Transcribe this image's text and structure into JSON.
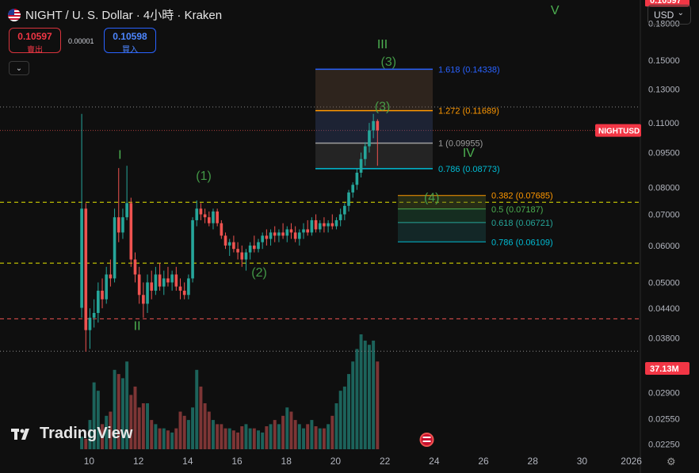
{
  "header": {
    "title": "NIGHT / U. S. Dollar · 4小時 · Kraken",
    "sell_price": "0.10597",
    "sell_label": "賣出",
    "spread": "0.00001",
    "buy_price": "0.10598",
    "buy_label": "買入",
    "currency": "USD",
    "brand": "TradingView"
  },
  "colors": {
    "up": "#26a69a",
    "down": "#ef5350",
    "wave": "#4caf50",
    "fib_top": "#2962ff",
    "fib_1272": "#ff9800",
    "fib_0786": "#00bcd4",
    "price_tag": "#f23645"
  },
  "chart_data": {
    "type": "candlestick",
    "title": "",
    "symbol": "NIGHTUSD",
    "price_scale": "log",
    "ylim": [
      0.0215,
      0.198
    ],
    "y_ticks": [
      "0.18000",
      "0.15000",
      "0.13000",
      "0.11000",
      "0.09500",
      "0.08000",
      "0.07000",
      "0.06000",
      "0.05000",
      "0.04400",
      "0.03800",
      "0.02900",
      "0.02550",
      "0.02250"
    ],
    "x_ticks": [
      "10",
      "12",
      "14",
      "16",
      "18",
      "20",
      "22",
      "24",
      "26",
      "28",
      "30",
      "2026"
    ],
    "x_range": [
      9.6,
      32.2
    ],
    "candles_per_day": 6,
    "first_candle_day": 9.7,
    "ohlc": [
      [
        0.0441,
        0.115,
        0.042,
        0.072
      ],
      [
        0.072,
        0.074,
        0.0355,
        0.0395
      ],
      [
        0.0395,
        0.044,
        0.036,
        0.042
      ],
      [
        0.042,
        0.046,
        0.04,
        0.043
      ],
      [
        0.043,
        0.05,
        0.041,
        0.048
      ],
      [
        0.048,
        0.051,
        0.044,
        0.046
      ],
      [
        0.046,
        0.054,
        0.045,
        0.052
      ],
      [
        0.052,
        0.056,
        0.049,
        0.051
      ],
      [
        0.051,
        0.072,
        0.05,
        0.069
      ],
      [
        0.069,
        0.088,
        0.061,
        0.064
      ],
      [
        0.064,
        0.072,
        0.062,
        0.069
      ],
      [
        0.069,
        0.089,
        0.068,
        0.074
      ],
      [
        0.074,
        0.076,
        0.054,
        0.056
      ],
      [
        0.056,
        0.058,
        0.05,
        0.052
      ],
      [
        0.052,
        0.054,
        0.045,
        0.047
      ],
      [
        0.047,
        0.05,
        0.042,
        0.045
      ],
      [
        0.045,
        0.052,
        0.043,
        0.05
      ],
      [
        0.05,
        0.053,
        0.046,
        0.048
      ],
      [
        0.048,
        0.054,
        0.047,
        0.052
      ],
      [
        0.052,
        0.055,
        0.048,
        0.049
      ],
      [
        0.049,
        0.053,
        0.047,
        0.051
      ],
      [
        0.051,
        0.054,
        0.049,
        0.05
      ],
      [
        0.05,
        0.053,
        0.048,
        0.052
      ],
      [
        0.052,
        0.054,
        0.048,
        0.049
      ],
      [
        0.049,
        0.051,
        0.046,
        0.048
      ],
      [
        0.048,
        0.05,
        0.046,
        0.047
      ],
      [
        0.047,
        0.052,
        0.046,
        0.051
      ],
      [
        0.051,
        0.069,
        0.05,
        0.068
      ],
      [
        0.068,
        0.075,
        0.066,
        0.072
      ],
      [
        0.072,
        0.074,
        0.068,
        0.07
      ],
      [
        0.07,
        0.072,
        0.067,
        0.069
      ],
      [
        0.069,
        0.071,
        0.066,
        0.067
      ],
      [
        0.067,
        0.072,
        0.065,
        0.071
      ],
      [
        0.071,
        0.072,
        0.066,
        0.067
      ],
      [
        0.067,
        0.068,
        0.062,
        0.063
      ],
      [
        0.063,
        0.064,
        0.059,
        0.06
      ],
      [
        0.06,
        0.062,
        0.057,
        0.061
      ],
      [
        0.061,
        0.063,
        0.058,
        0.059
      ],
      [
        0.059,
        0.061,
        0.056,
        0.058
      ],
      [
        0.058,
        0.06,
        0.054,
        0.056
      ],
      [
        0.056,
        0.059,
        0.053,
        0.058
      ],
      [
        0.058,
        0.061,
        0.056,
        0.06
      ],
      [
        0.06,
        0.063,
        0.058,
        0.059
      ],
      [
        0.059,
        0.062,
        0.058,
        0.061
      ],
      [
        0.061,
        0.064,
        0.059,
        0.063
      ],
      [
        0.063,
        0.065,
        0.06,
        0.062
      ],
      [
        0.062,
        0.065,
        0.06,
        0.064
      ],
      [
        0.064,
        0.066,
        0.061,
        0.063
      ],
      [
        0.063,
        0.065,
        0.061,
        0.064
      ],
      [
        0.064,
        0.067,
        0.062,
        0.063
      ],
      [
        0.063,
        0.066,
        0.061,
        0.065
      ],
      [
        0.065,
        0.067,
        0.062,
        0.064
      ],
      [
        0.064,
        0.066,
        0.061,
        0.062
      ],
      [
        0.062,
        0.065,
        0.06,
        0.064
      ],
      [
        0.064,
        0.067,
        0.062,
        0.065
      ],
      [
        0.065,
        0.068,
        0.063,
        0.064
      ],
      [
        0.064,
        0.069,
        0.063,
        0.068
      ],
      [
        0.068,
        0.07,
        0.064,
        0.065
      ],
      [
        0.065,
        0.068,
        0.064,
        0.067
      ],
      [
        0.067,
        0.069,
        0.064,
        0.066
      ],
      [
        0.066,
        0.068,
        0.064,
        0.067
      ],
      [
        0.067,
        0.07,
        0.065,
        0.066
      ],
      [
        0.066,
        0.069,
        0.065,
        0.068
      ],
      [
        0.068,
        0.072,
        0.066,
        0.07
      ],
      [
        0.07,
        0.074,
        0.068,
        0.073
      ],
      [
        0.073,
        0.079,
        0.071,
        0.078
      ],
      [
        0.078,
        0.082,
        0.076,
        0.081
      ],
      [
        0.081,
        0.088,
        0.079,
        0.086
      ],
      [
        0.086,
        0.095,
        0.084,
        0.092
      ],
      [
        0.092,
        0.1,
        0.089,
        0.098
      ],
      [
        0.098,
        0.11,
        0.095,
        0.106
      ],
      [
        0.106,
        0.115,
        0.102,
        0.111
      ],
      [
        0.111,
        0.112,
        0.089,
        0.106
      ]
    ],
    "volume_max": 55,
    "volume": [
      6,
      5,
      14,
      32,
      28,
      12,
      16,
      18,
      38,
      36,
      34,
      42,
      26,
      30,
      20,
      22,
      22,
      14,
      12,
      10,
      10,
      9,
      8,
      10,
      18,
      16,
      14,
      20,
      38,
      30,
      22,
      18,
      14,
      12,
      12,
      10,
      10,
      9,
      8,
      11,
      12,
      10,
      10,
      9,
      8,
      11,
      12,
      14,
      12,
      16,
      20,
      18,
      14,
      12,
      10,
      12,
      14,
      11,
      10,
      10,
      12,
      16,
      22,
      28,
      30,
      36,
      42,
      48,
      55,
      52,
      50,
      52,
      42
    ],
    "last_price": "0.10597",
    "last_volume": "37.13M",
    "horizontal_levels": [
      {
        "price": 0.07433,
        "label": "0.07433",
        "style": "dashed",
        "color": "#e6e600"
      },
      {
        "price": 0.055,
        "label": "0.05500",
        "style": "dashed",
        "color": "#e6e600"
      },
      {
        "price": 0.04177,
        "label": "0.04177",
        "style": "dashed",
        "color": "#ef5350"
      },
      {
        "price": 0.119,
        "label": "",
        "style": "dotted",
        "color": "#8a8a8a"
      },
      {
        "price": 0.0356,
        "label": "",
        "style": "dotted",
        "color": "#8a8a8a"
      }
    ],
    "fib_extension": [
      {
        "ratio": "1.618",
        "price": "0.14338",
        "label": "1.618 (0.14338)",
        "color": "#2962ff"
      },
      {
        "ratio": "1.272",
        "price": "0.11689",
        "label": "1.272 (0.11689)",
        "color": "#ff9800"
      },
      {
        "ratio": "1",
        "price": "0.09955",
        "label": "1 (0.09955)",
        "color": "#9e9e9e"
      },
      {
        "ratio": "0.786",
        "price": "0.08773",
        "label": "0.786 (0.08773)",
        "color": "#00bcd4"
      }
    ],
    "fib_retracement": [
      {
        "ratio": "0.382",
        "price": "0.07685",
        "label": "0.382 (0.07685)",
        "color": "#ff9800"
      },
      {
        "ratio": "0.5",
        "price": "0.07187",
        "label": "0.5 (0.07187)",
        "color": "#4caf50"
      },
      {
        "ratio": "0.618",
        "price": "0.06721",
        "label": "0.618 (0.06721)",
        "color": "#26a69a"
      },
      {
        "ratio": "0.786",
        "price": "0.06109",
        "label": "0.786 (0.06109)",
        "color": "#00bcd4"
      }
    ],
    "wave_labels": [
      {
        "text": "I",
        "day": 11.25,
        "price": 0.092
      },
      {
        "text": "II",
        "day": 11.95,
        "price": 0.0395
      },
      {
        "text": "(1)",
        "day": 14.65,
        "price": 0.083
      },
      {
        "text": "(2)",
        "day": 16.9,
        "price": 0.0515
      },
      {
        "text": "III",
        "day": 21.9,
        "price": 0.159
      },
      {
        "text": "(3)",
        "day": 22.15,
        "price": 0.146
      },
      {
        "text": "(3)",
        "day": 21.9,
        "price": 0.117
      },
      {
        "text": "IV",
        "day": 25.4,
        "price": 0.093
      },
      {
        "text": "(4)",
        "day": 23.9,
        "price": 0.0745
      },
      {
        "text": "V",
        "day": 28.9,
        "price": 0.188
      }
    ]
  }
}
